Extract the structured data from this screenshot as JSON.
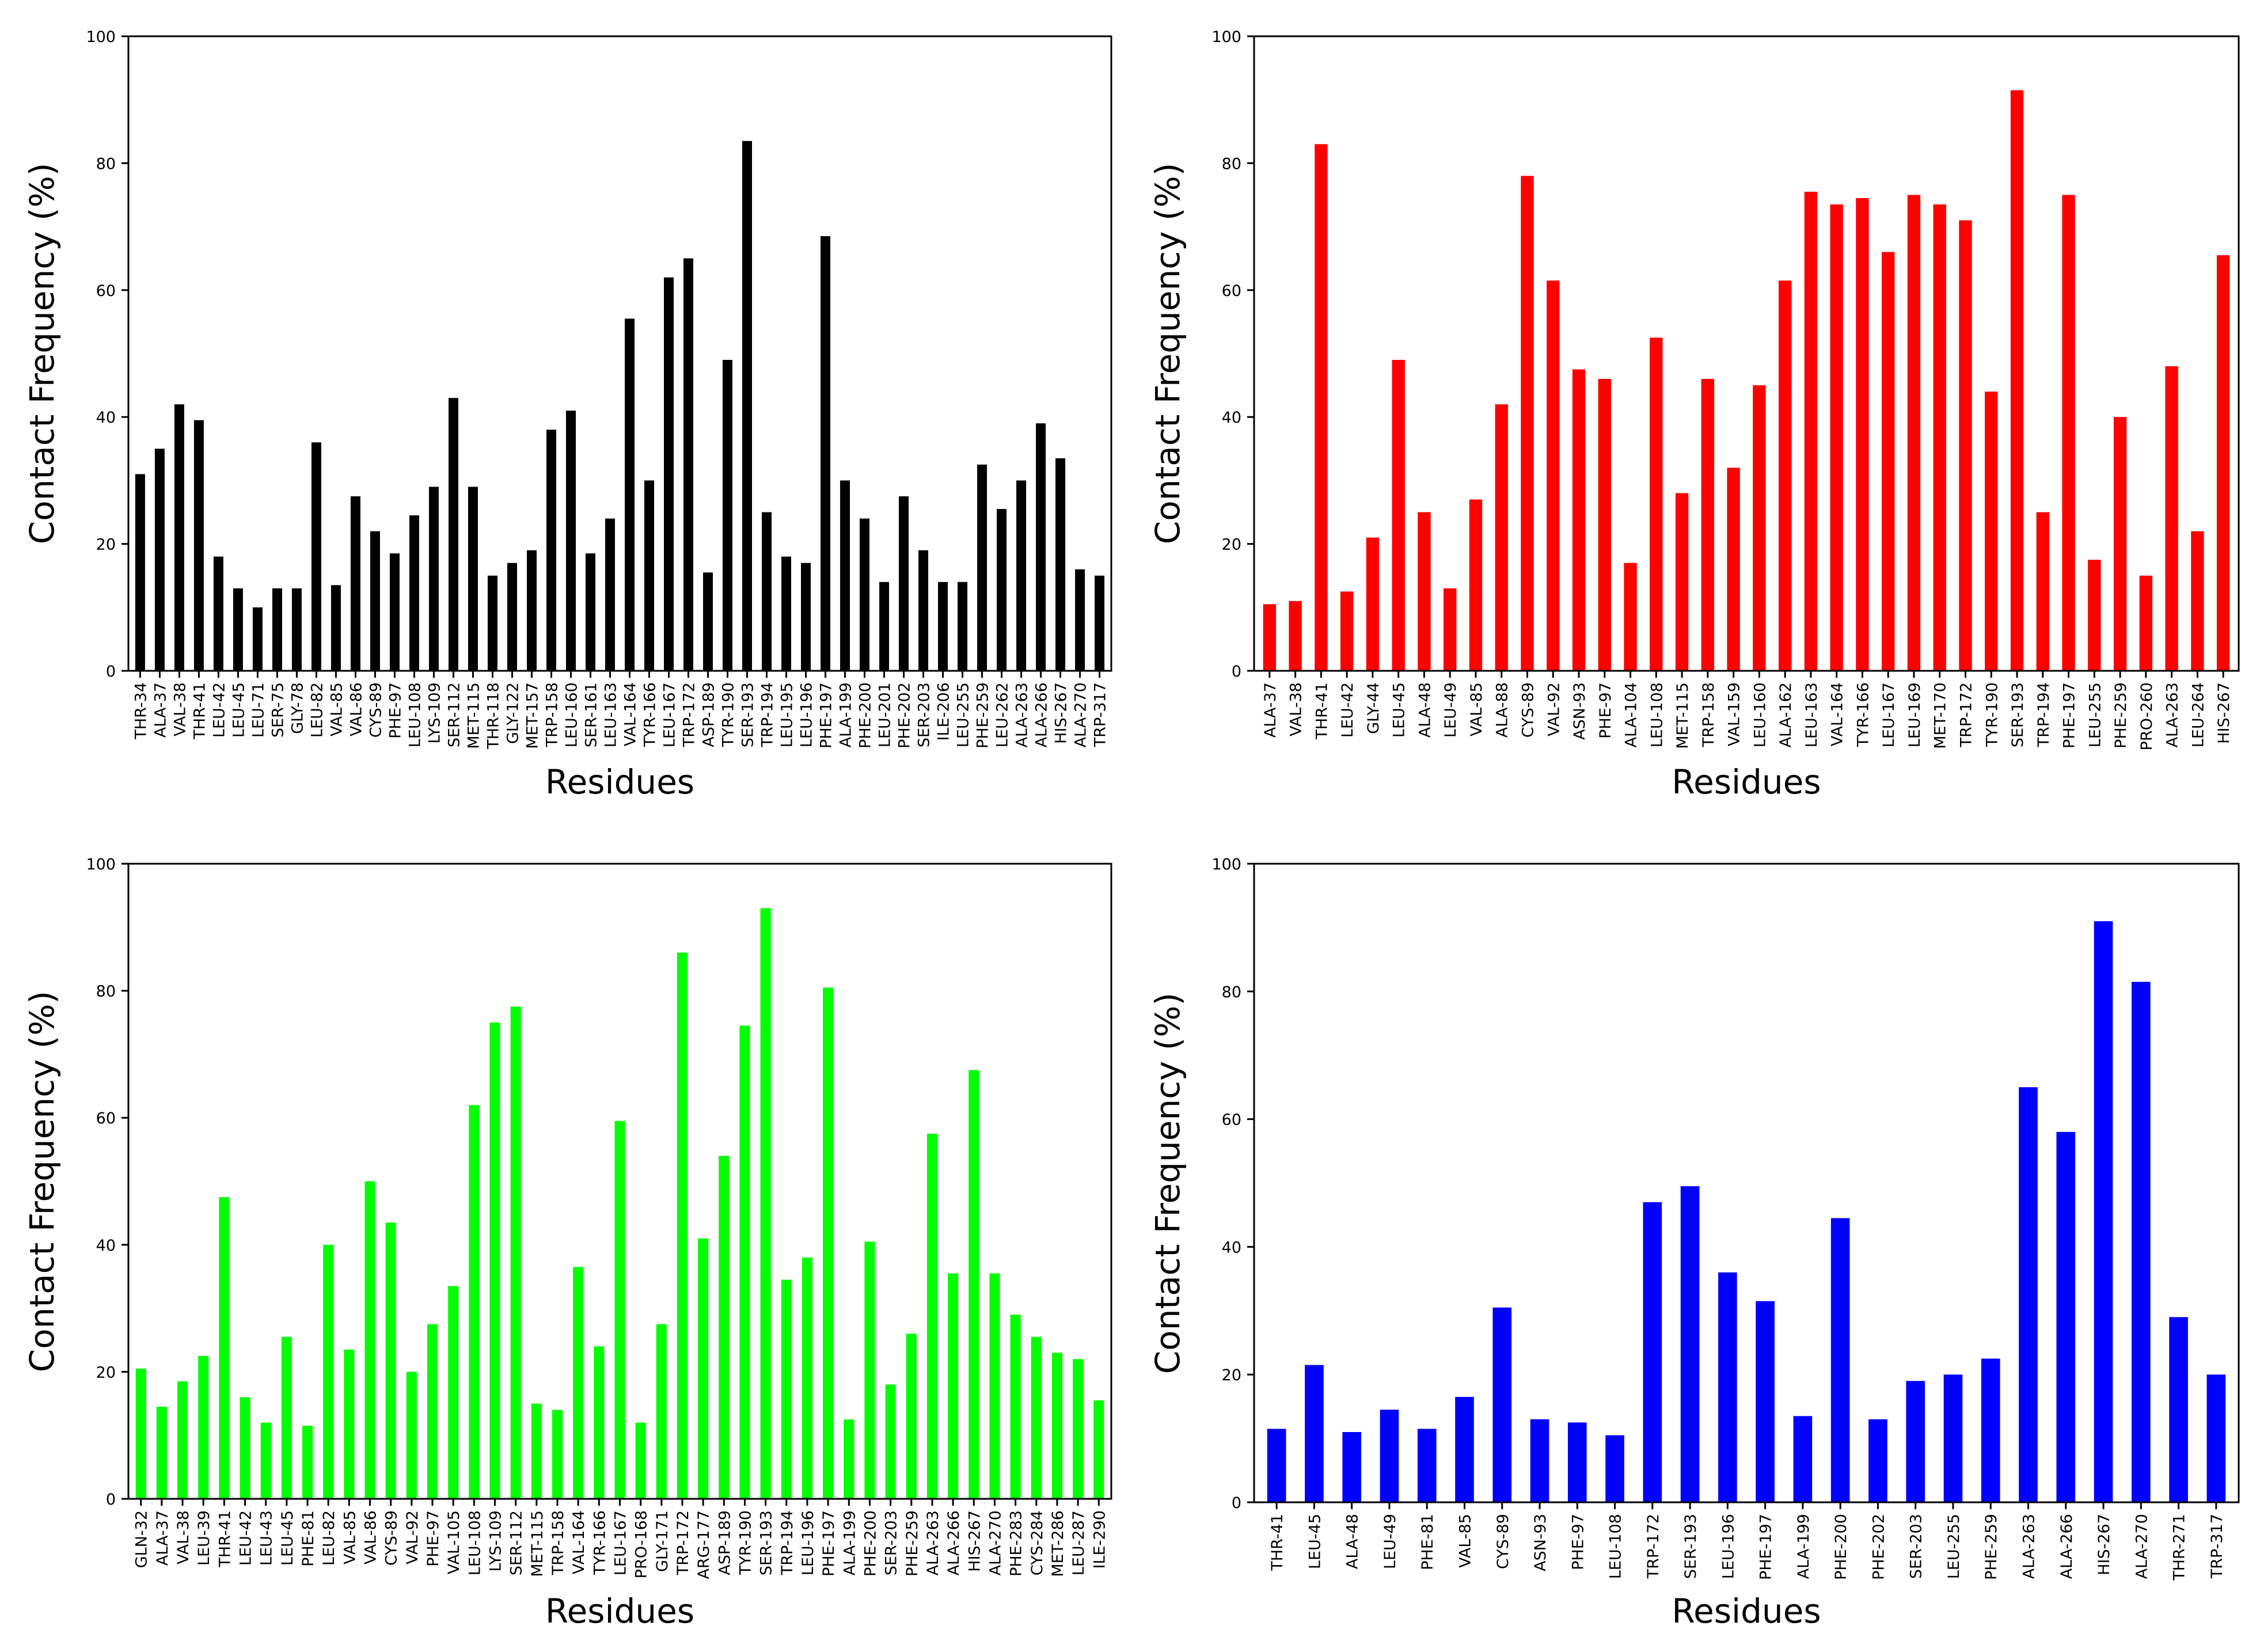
{
  "chart_data": [
    {
      "type": "bar",
      "panel": "top-left",
      "color": "#000000",
      "xlabel": "Residues",
      "ylabel": "Contact Frequency (%)",
      "ylim": [
        0,
        100
      ],
      "yticks": [
        "0",
        "20",
        "40",
        "60",
        "80",
        "100"
      ],
      "categories": [
        "THR-34",
        "ALA-37",
        "VAL-38",
        "THR-41",
        "LEU-42",
        "LEU-45",
        "LEU-71",
        "SER-75",
        "GLY-78",
        "LEU-82",
        "VAL-85",
        "VAL-86",
        "CYS-89",
        "PHE-97",
        "LEU-108",
        "LYS-109",
        "SER-112",
        "MET-115",
        "THR-118",
        "GLY-122",
        "MET-157",
        "TRP-158",
        "LEU-160",
        "SER-161",
        "LEU-163",
        "VAL-164",
        "TYR-166",
        "LEU-167",
        "TRP-172",
        "ASP-189",
        "TYR-190",
        "SER-193",
        "TRP-194",
        "LEU-195",
        "LEU-196",
        "PHE-197",
        "ALA-199",
        "PHE-200",
        "LEU-201",
        "PHE-202",
        "SER-203",
        "ILE-206",
        "LEU-255",
        "PHE-259",
        "LEU-262",
        "ALA-263",
        "ALA-266",
        "HIS-267",
        "ALA-270",
        "TRP-317"
      ],
      "values": [
        31,
        35,
        42,
        39.5,
        18,
        13,
        10,
        13,
        13,
        36,
        13.5,
        27.5,
        22,
        18.5,
        24.5,
        29,
        43,
        29,
        15,
        17,
        19,
        38,
        41,
        18.5,
        24,
        55.5,
        30,
        62,
        65,
        15.5,
        49,
        83.5,
        25,
        18,
        17,
        68.5,
        30,
        24,
        14,
        27.5,
        19,
        14,
        14,
        32.5,
        25.5,
        30,
        39,
        33.5,
        16,
        15
      ]
    },
    {
      "type": "bar",
      "panel": "top-right",
      "color": "#ff0000",
      "xlabel": "Residues",
      "ylabel": "Contact Frequency (%)",
      "ylim": [
        0,
        100
      ],
      "yticks": [
        "0",
        "20",
        "40",
        "60",
        "80",
        "100"
      ],
      "categories": [
        "ALA-37",
        "VAL-38",
        "THR-41",
        "LEU-42",
        "GLY-44",
        "LEU-45",
        "ALA-48",
        "LEU-49",
        "VAL-85",
        "ALA-88",
        "CYS-89",
        "VAL-92",
        "ASN-93",
        "PHE-97",
        "ALA-104",
        "LEU-108",
        "MET-115",
        "TRP-158",
        "VAL-159",
        "LEU-160",
        "ALA-162",
        "LEU-163",
        "VAL-164",
        "TYR-166",
        "LEU-167",
        "LEU-169",
        "MET-170",
        "TRP-172",
        "TYR-190",
        "SER-193",
        "TRP-194",
        "PHE-197",
        "LEU-255",
        "PHE-259",
        "PRO-260",
        "ALA-263",
        "LEU-264",
        "HIS-267"
      ],
      "values": [
        10.5,
        11,
        83,
        12.5,
        21,
        49,
        25,
        13,
        27,
        42,
        78,
        61.5,
        47.5,
        46,
        17,
        52.5,
        28,
        46,
        32,
        45,
        61.5,
        75.5,
        73.5,
        74.5,
        66,
        75,
        73.5,
        71,
        44,
        91.5,
        25,
        75,
        17.5,
        40,
        15,
        48,
        22,
        65.5
      ]
    },
    {
      "type": "bar",
      "panel": "bottom-left",
      "color": "#00ff00",
      "xlabel": "Residues",
      "ylabel": "Contact Frequency (%)",
      "ylim": [
        0,
        100
      ],
      "yticks": [
        "0",
        "20",
        "40",
        "60",
        "80",
        "100"
      ],
      "categories": [
        "GLN-32",
        "ALA-37",
        "VAL-38",
        "LEU-39",
        "THR-41",
        "LEU-42",
        "LEU-43",
        "LEU-45",
        "PHE-81",
        "LEU-82",
        "VAL-85",
        "VAL-86",
        "CYS-89",
        "VAL-92",
        "PHE-97",
        "VAL-105",
        "LEU-108",
        "LYS-109",
        "SER-112",
        "MET-115",
        "TRP-158",
        "VAL-164",
        "TYR-166",
        "LEU-167",
        "PRO-168",
        "GLY-171",
        "TRP-172",
        "ARG-177",
        "ASP-189",
        "TYR-190",
        "SER-193",
        "TRP-194",
        "LEU-196",
        "PHE-197",
        "ALA-199",
        "PHE-200",
        "SER-203",
        "PHE-259",
        "ALA-263",
        "ALA-266",
        "HIS-267",
        "ALA-270",
        "PHE-283",
        "CYS-284",
        "MET-286",
        "LEU-287",
        "ILE-290"
      ],
      "values": [
        20.5,
        14.5,
        18.5,
        22.5,
        47.5,
        16,
        12,
        25.5,
        11.5,
        40,
        23.5,
        50,
        43.5,
        20,
        27.5,
        33.5,
        62,
        75,
        77.5,
        15,
        14,
        36.5,
        24,
        59.5,
        12,
        27.5,
        86,
        41,
        54,
        74.5,
        93,
        34.5,
        38,
        80.5,
        12.5,
        40.5,
        18,
        26,
        57.5,
        35.5,
        67.5,
        35.5,
        29,
        25.5,
        23,
        22,
        15.5
      ]
    },
    {
      "type": "bar",
      "panel": "bottom-right",
      "color": "#0000ff",
      "xlabel": "Residues",
      "ylabel": "Contact Frequency (%)",
      "ylim": [
        0,
        100
      ],
      "yticks": [
        "0",
        "20",
        "40",
        "60",
        "80",
        "100"
      ],
      "categories": [
        "THR-41",
        "LEU-45",
        "ALA-48",
        "LEU-49",
        "PHE-81",
        "VAL-85",
        "CYS-89",
        "ASN-93",
        "PHE-97",
        "LEU-108",
        "TRP-172",
        "SER-193",
        "LEU-196",
        "PHE-197",
        "ALA-199",
        "PHE-200",
        "PHE-202",
        "SER-203",
        "LEU-255",
        "PHE-259",
        "ALA-263",
        "ALA-266",
        "HIS-267",
        "ALA-270",
        "THR-271",
        "TRP-317"
      ],
      "values": [
        11.5,
        21.5,
        11,
        14.5,
        11.5,
        16.5,
        30.5,
        13,
        12.5,
        10.5,
        47,
        49.5,
        36,
        31.5,
        13.5,
        44.5,
        13,
        19,
        20,
        22.5,
        65,
        58,
        91,
        81.5,
        29,
        20
      ]
    }
  ]
}
